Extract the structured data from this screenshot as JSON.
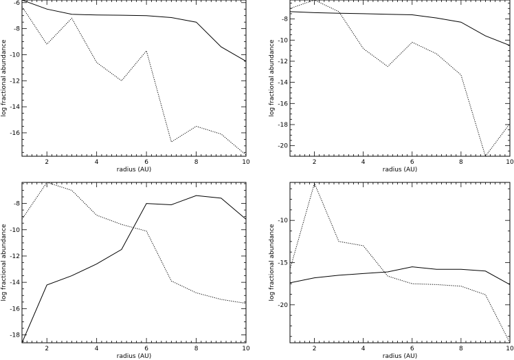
{
  "chart_data": [
    {
      "type": "line",
      "xlabel": "radius (AU)",
      "ylabel": "log fractional abundance",
      "xlim": [
        1,
        10
      ],
      "ylim": [
        -17.8,
        -5.8
      ],
      "xticks": [
        2,
        4,
        6,
        8,
        10
      ],
      "yticks": [
        -16,
        -14,
        -12,
        -10,
        -8,
        -6
      ],
      "series": [
        {
          "style": "solid",
          "x": [
            1,
            2,
            3,
            4,
            5,
            6,
            7,
            8,
            9,
            10
          ],
          "values": [
            -5.8,
            -6.5,
            -6.9,
            -6.95,
            -6.97,
            -7.0,
            -7.15,
            -7.5,
            -9.4,
            -10.5
          ]
        },
        {
          "style": "dotted",
          "x": [
            1,
            2,
            3,
            4,
            5,
            6,
            7,
            8,
            9,
            10
          ],
          "values": [
            -6.3,
            -9.2,
            -7.2,
            -10.6,
            -12.0,
            -9.7,
            -16.7,
            -15.5,
            -16.1,
            -17.7
          ]
        }
      ]
    },
    {
      "type": "line",
      "xlabel": "radius (AU)",
      "ylabel": "log fractional abundance",
      "xlim": [
        1,
        10
      ],
      "ylim": [
        -21,
        -6.2
      ],
      "xticks": [
        2,
        4,
        6,
        8,
        10
      ],
      "yticks": [
        -20,
        -18,
        -16,
        -14,
        -12,
        -10,
        -8
      ],
      "series": [
        {
          "style": "solid",
          "x": [
            1,
            2,
            3,
            4,
            5,
            6,
            7,
            8,
            9,
            10
          ],
          "values": [
            -7.3,
            -7.4,
            -7.45,
            -7.5,
            -7.55,
            -7.6,
            -7.9,
            -8.3,
            -9.6,
            -10.5
          ]
        },
        {
          "style": "dotted",
          "x": [
            1,
            2,
            3,
            4,
            5,
            6,
            7,
            8,
            9,
            10
          ],
          "values": [
            -7.0,
            -6.2,
            -7.3,
            -10.8,
            -12.5,
            -10.2,
            -11.3,
            -13.3,
            -21.0,
            -17.9
          ]
        }
      ]
    },
    {
      "type": "line",
      "xlabel": "radius (AU)",
      "ylabel": "log fractional abundance",
      "xlim": [
        1,
        10
      ],
      "ylim": [
        -18.6,
        -6.4
      ],
      "xticks": [
        2,
        4,
        6,
        8,
        10
      ],
      "yticks": [
        -18,
        -16,
        -14,
        -12,
        -10,
        -8
      ],
      "series": [
        {
          "style": "solid",
          "x": [
            1,
            2,
            3,
            4,
            5,
            6,
            7,
            8,
            9,
            10
          ],
          "values": [
            -18.6,
            -14.2,
            -13.5,
            -12.6,
            -11.5,
            -8.0,
            -8.1,
            -7.4,
            -7.6,
            -9.2
          ]
        },
        {
          "style": "dotted",
          "x": [
            1,
            2,
            3,
            4,
            5,
            6,
            7,
            8,
            9,
            10
          ],
          "values": [
            -9.2,
            -6.4,
            -7.0,
            -8.9,
            -9.6,
            -10.1,
            -13.9,
            -14.8,
            -15.3,
            -15.6
          ]
        }
      ]
    },
    {
      "type": "line",
      "xlabel": "radius (AU)",
      "ylabel": "log fractional abundance",
      "xlim": [
        1,
        10
      ],
      "ylim": [
        -24.5,
        -5.5
      ],
      "xticks": [
        2,
        4,
        6,
        8,
        10
      ],
      "yticks": [
        -20,
        -15,
        -10
      ],
      "series": [
        {
          "style": "solid",
          "x": [
            1,
            2,
            3,
            4,
            5,
            6,
            7,
            8,
            9,
            10
          ],
          "values": [
            -17.4,
            -16.8,
            -16.5,
            -16.3,
            -16.1,
            -15.5,
            -15.8,
            -15.8,
            -16.0,
            -17.6
          ]
        },
        {
          "style": "dotted",
          "x": [
            1,
            2,
            3,
            4,
            5,
            6,
            7,
            8,
            9,
            10
          ],
          "values": [
            -15.8,
            -5.6,
            -12.5,
            -13.0,
            -16.6,
            -17.5,
            -17.6,
            -17.8,
            -18.8,
            -24.5
          ]
        }
      ]
    }
  ]
}
